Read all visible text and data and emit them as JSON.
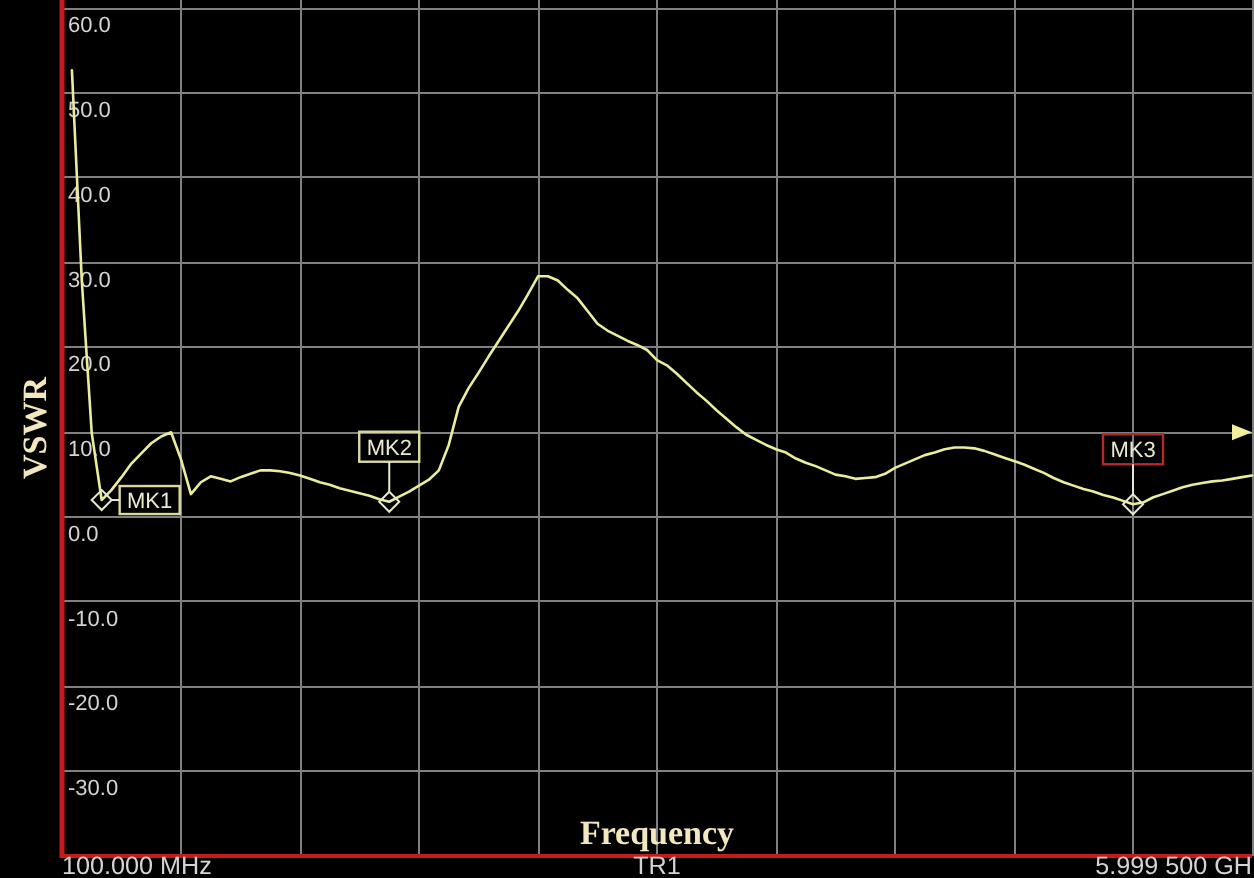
{
  "chart_data": {
    "type": "line",
    "xlabel": "Frequency",
    "ylabel": "VSWR",
    "categories": [
      null,
      null,
      null,
      null,
      null,
      null,
      null,
      null,
      null,
      null,
      null,
      null,
      null,
      null,
      null,
      null,
      null,
      null,
      null,
      null,
      null,
      null,
      null,
      null,
      null,
      null,
      null,
      null,
      null,
      null,
      null,
      null,
      null,
      null,
      null,
      null,
      null,
      null,
      null,
      null,
      null,
      null,
      null,
      null,
      null,
      null,
      null,
      null,
      null,
      null,
      null,
      null,
      null,
      null,
      null,
      null,
      null,
      null,
      null,
      null,
      null,
      null,
      null,
      null,
      null,
      null,
      null,
      null,
      null,
      null,
      null,
      null,
      null,
      null,
      null,
      null,
      null,
      null,
      null,
      null,
      null,
      null,
      null,
      null,
      null,
      null,
      null,
      null,
      null,
      null,
      null,
      null,
      null,
      null,
      null,
      null,
      null,
      null,
      null,
      null,
      null,
      null,
      null,
      null,
      null,
      null,
      null,
      null,
      null,
      null,
      null,
      null,
      null,
      null,
      null,
      null,
      null,
      null,
      null,
      null,
      null
    ],
    "ylim": [
      -40,
      61
    ],
    "yticks": [
      {
        "value": 60,
        "label": "60.0"
      },
      {
        "value": 50,
        "label": "50.0"
      },
      {
        "value": 40,
        "label": "40.0"
      },
      {
        "value": 30,
        "label": "30.0"
      },
      {
        "value": 20,
        "label": "20.0"
      },
      {
        "value": 10,
        "label": "10.0"
      },
      {
        "value": 0,
        "label": "0.0"
      },
      {
        "value": -10,
        "label": "-10.0"
      },
      {
        "value": -20,
        "label": "-20.0"
      },
      {
        "value": -30,
        "label": "-30.0"
      }
    ],
    "grid": true,
    "annotations": [
      "100.000 MHz",
      "TR1",
      "5.999 500 GH"
    ],
    "series": [
      {
        "color": "#ecec9e",
        "values": [
          null,
          52.7,
          27.8,
          9.9,
          2.0,
          3.2,
          4.7,
          6.3,
          7.5,
          8.7,
          9.5,
          10.0,
          6.8,
          2.7,
          4.1,
          4.8,
          4.5,
          4.2,
          4.7,
          5.1,
          5.5,
          5.5,
          5.4,
          5.2,
          4.9,
          4.5,
          4.1,
          3.8,
          3.4,
          3.1,
          2.8,
          2.5,
          2.1,
          1.8,
          2.4,
          3.0,
          3.7,
          4.4,
          5.5,
          8.5,
          13.0,
          15.2,
          17.0,
          18.9,
          20.7,
          22.5,
          24.3,
          26.3,
          28.4,
          28.4,
          27.9,
          26.8,
          25.8,
          24.3,
          22.8,
          22.0,
          21.4,
          20.8,
          20.3,
          19.7,
          18.5,
          17.9,
          16.9,
          15.8,
          14.7,
          13.7,
          12.6,
          11.6,
          10.6,
          9.7,
          9.1,
          8.5,
          8.0,
          7.6,
          6.9,
          6.4,
          6.0,
          5.5,
          5.0,
          4.8,
          4.5,
          4.6,
          4.7,
          5.1,
          5.8,
          6.3,
          6.8,
          7.3,
          7.6,
          8.0,
          8.2,
          8.2,
          8.1,
          7.8,
          7.4,
          7.0,
          6.6,
          6.2,
          5.7,
          5.2,
          4.6,
          4.1,
          3.7,
          3.3,
          3.0,
          2.6,
          2.3,
          1.9,
          1.5,
          1.7,
          2.3,
          2.7,
          3.1,
          3.5,
          3.8,
          4.0,
          4.2,
          4.3,
          4.5,
          4.7,
          4.9
        ]
      },
      {
        "name": "MK1",
        "type": "scatter",
        "marker": "diamond",
        "color": "#e8e8d0",
        "values": [
          null,
          null,
          null,
          null,
          2.0,
          null,
          null,
          null,
          null,
          null,
          null,
          null,
          null,
          null,
          null,
          null,
          null,
          null,
          null,
          null,
          null,
          null,
          null,
          null,
          null,
          null,
          null,
          null,
          null,
          null,
          null,
          null,
          null,
          null,
          null,
          null,
          null,
          null,
          null,
          null,
          null,
          null,
          null,
          null,
          null,
          null,
          null,
          null,
          null,
          null,
          null,
          null,
          null,
          null,
          null,
          null,
          null,
          null,
          null,
          null,
          null,
          null,
          null,
          null,
          null,
          null,
          null,
          null,
          null,
          null,
          null,
          null,
          null,
          null,
          null,
          null,
          null,
          null,
          null,
          null,
          null,
          null,
          null,
          null,
          null,
          null,
          null,
          null,
          null,
          null,
          null,
          null,
          null,
          null,
          null,
          null,
          null,
          null,
          null,
          null,
          null,
          null,
          null,
          null,
          null,
          null,
          null,
          null,
          null,
          null,
          null,
          null,
          null,
          null,
          null,
          null,
          null,
          null,
          null,
          null,
          null
        ]
      },
      {
        "name": "MK2",
        "type": "scatter",
        "marker": "diamond",
        "color": "#e8e8d0",
        "values": [
          null,
          null,
          null,
          null,
          null,
          null,
          null,
          null,
          null,
          null,
          null,
          null,
          null,
          null,
          null,
          null,
          null,
          null,
          null,
          null,
          null,
          null,
          null,
          null,
          null,
          null,
          null,
          null,
          null,
          null,
          null,
          null,
          null,
          1.8,
          null,
          null,
          null,
          null,
          null,
          null,
          null,
          null,
          null,
          null,
          null,
          null,
          null,
          null,
          null,
          null,
          null,
          null,
          null,
          null,
          null,
          null,
          null,
          null,
          null,
          null,
          null,
          null,
          null,
          null,
          null,
          null,
          null,
          null,
          null,
          null,
          null,
          null,
          null,
          null,
          null,
          null,
          null,
          null,
          null,
          null,
          null,
          null,
          null,
          null,
          null,
          null,
          null,
          null,
          null,
          null,
          null,
          null,
          null,
          null,
          null,
          null,
          null,
          null,
          null,
          null,
          null,
          null,
          null,
          null,
          null,
          null,
          null,
          null,
          null,
          null,
          null,
          null,
          null,
          null,
          null,
          null,
          null,
          null,
          null,
          null,
          null
        ]
      },
      {
        "name": "MK3",
        "type": "scatter",
        "marker": "diamond",
        "color": "#e8e8d0",
        "values": [
          null,
          null,
          null,
          null,
          null,
          null,
          null,
          null,
          null,
          null,
          null,
          null,
          null,
          null,
          null,
          null,
          null,
          null,
          null,
          null,
          null,
          null,
          null,
          null,
          null,
          null,
          null,
          null,
          null,
          null,
          null,
          null,
          null,
          null,
          null,
          null,
          null,
          null,
          null,
          null,
          null,
          null,
          null,
          null,
          null,
          null,
          null,
          null,
          null,
          null,
          null,
          null,
          null,
          null,
          null,
          null,
          null,
          null,
          null,
          null,
          null,
          null,
          null,
          null,
          null,
          null,
          null,
          null,
          null,
          null,
          null,
          null,
          null,
          null,
          null,
          null,
          null,
          null,
          null,
          null,
          null,
          null,
          null,
          null,
          null,
          null,
          null,
          null,
          null,
          null,
          null,
          null,
          null,
          null,
          null,
          null,
          null,
          null,
          null,
          null,
          null,
          null,
          null,
          null,
          null,
          null,
          null,
          null,
          1.5,
          null,
          null,
          null,
          null,
          null,
          null,
          null,
          null,
          null,
          null,
          null,
          null
        ]
      }
    ]
  }
}
